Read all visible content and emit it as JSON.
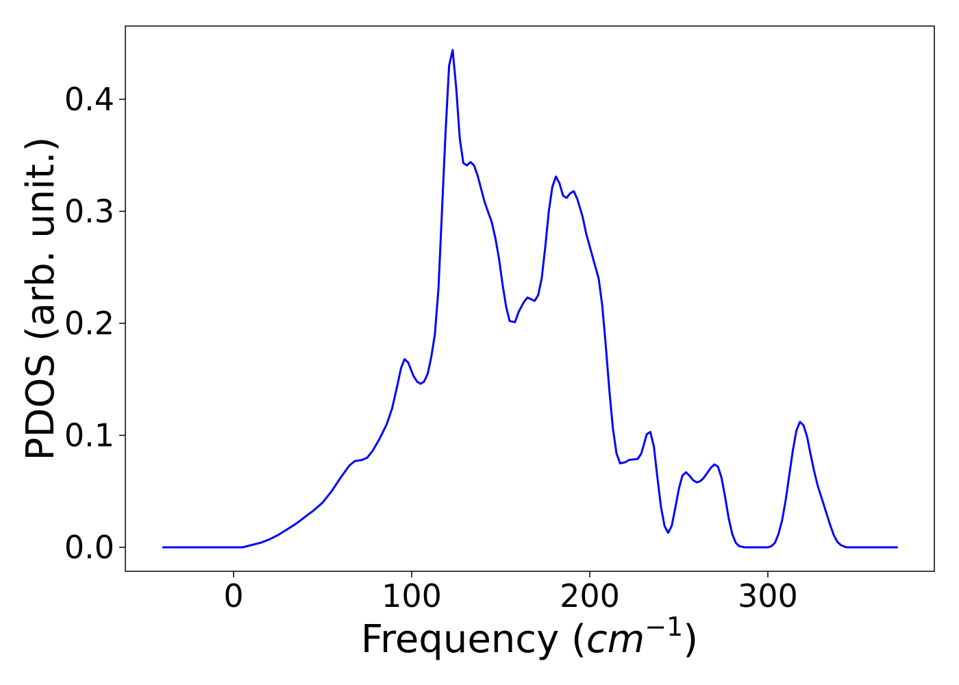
{
  "chart_data": {
    "type": "line",
    "xlabel": {
      "text": "Frequency (",
      "unit": "cm",
      "exponent": "−1",
      "close": ")"
    },
    "ylabel": "PDOS (arb. unit.)",
    "xlim": [
      -60.8,
      393.5
    ],
    "ylim": [
      -0.0214,
      0.4654
    ],
    "xticks": [
      0,
      100,
      200,
      300
    ],
    "yticks": [
      {
        "value": 0,
        "label": "0.0"
      },
      0.1,
      0.2,
      0.3,
      0.4
    ],
    "grid": false,
    "series": [
      {
        "color": "#0000ff",
        "x": [
          -40,
          5,
          10,
          15,
          20,
          25,
          30,
          35,
          40,
          45,
          50,
          55,
          60,
          65,
          68,
          72,
          75,
          78,
          82,
          86,
          89,
          92,
          94,
          96,
          98,
          101,
          103,
          105,
          107,
          109,
          111,
          113,
          115,
          117,
          119,
          121,
          123,
          125,
          127,
          129,
          131,
          133,
          135,
          137,
          141,
          145,
          147,
          149,
          151,
          153,
          155,
          158,
          160,
          163,
          165,
          169,
          171,
          173,
          175,
          177,
          179,
          181,
          183,
          185,
          187,
          189,
          191,
          193,
          196,
          198,
          202,
          205,
          207,
          209,
          211,
          213,
          215,
          217,
          220,
          222,
          227,
          229,
          232,
          234,
          236,
          238,
          240,
          242,
          244,
          246,
          248,
          250,
          252,
          254,
          256,
          258,
          260,
          262,
          264,
          268,
          270,
          272,
          274,
          276,
          278,
          280,
          282,
          284,
          287,
          300,
          302,
          304,
          306,
          308,
          310,
          312,
          314,
          316,
          318,
          320,
          322,
          324,
          326,
          328,
          331,
          333,
          335,
          337,
          339,
          341,
          344,
          373
        ],
        "values": [
          0,
          0,
          0.002,
          0.004,
          0.007,
          0.011,
          0.016,
          0.021,
          0.027,
          0.033,
          0.04,
          0.05,
          0.062,
          0.073,
          0.077,
          0.078,
          0.08,
          0.086,
          0.097,
          0.11,
          0.124,
          0.145,
          0.16,
          0.168,
          0.165,
          0.153,
          0.148,
          0.146,
          0.148,
          0.155,
          0.17,
          0.19,
          0.23,
          0.3,
          0.37,
          0.43,
          0.444,
          0.41,
          0.365,
          0.343,
          0.341,
          0.344,
          0.341,
          0.332,
          0.308,
          0.29,
          0.276,
          0.258,
          0.235,
          0.215,
          0.202,
          0.201,
          0.21,
          0.219,
          0.223,
          0.22,
          0.225,
          0.24,
          0.268,
          0.3,
          0.322,
          0.331,
          0.325,
          0.314,
          0.312,
          0.316,
          0.318,
          0.311,
          0.295,
          0.28,
          0.257,
          0.24,
          0.216,
          0.18,
          0.14,
          0.106,
          0.084,
          0.075,
          0.076,
          0.078,
          0.079,
          0.084,
          0.101,
          0.103,
          0.09,
          0.062,
          0.036,
          0.019,
          0.013,
          0.019,
          0.035,
          0.052,
          0.064,
          0.067,
          0.064,
          0.06,
          0.058,
          0.059,
          0.062,
          0.071,
          0.074,
          0.072,
          0.062,
          0.045,
          0.026,
          0.012,
          0.004,
          0.001,
          0,
          0,
          0.001,
          0.004,
          0.012,
          0.024,
          0.042,
          0.064,
          0.086,
          0.104,
          0.112,
          0.109,
          0.099,
          0.083,
          0.068,
          0.055,
          0.04,
          0.03,
          0.02,
          0.011,
          0.005,
          0.002,
          0,
          0
        ]
      }
    ]
  }
}
